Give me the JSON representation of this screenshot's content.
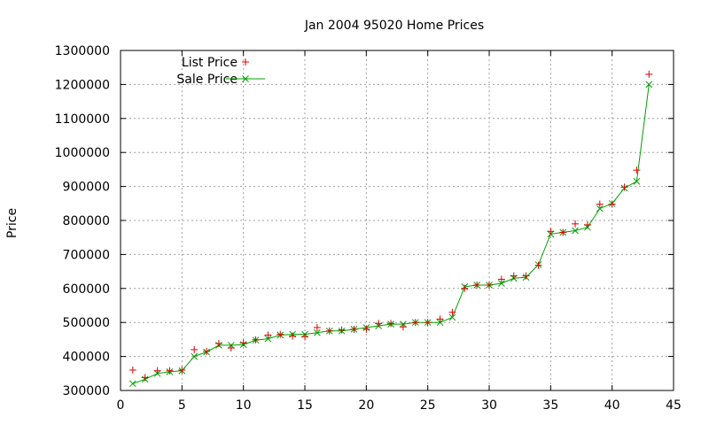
{
  "chart_data": {
    "type": "line",
    "title": "Jan 2004 95020 Home Prices",
    "xlabel": "",
    "ylabel": "Price",
    "xlim": [
      0,
      45
    ],
    "ylim": [
      300000,
      1300000
    ],
    "x_ticks": [
      0,
      5,
      10,
      15,
      20,
      25,
      30,
      35,
      40,
      45
    ],
    "y_ticks": [
      300000,
      400000,
      500000,
      600000,
      700000,
      800000,
      900000,
      1000000,
      1100000,
      1200000,
      1300000
    ],
    "grid": true,
    "legend_position": "top-left",
    "x": [
      1,
      2,
      3,
      4,
      5,
      6,
      7,
      8,
      9,
      10,
      11,
      12,
      13,
      14,
      15,
      16,
      17,
      18,
      19,
      20,
      21,
      22,
      23,
      24,
      25,
      26,
      27,
      28,
      29,
      30,
      31,
      32,
      33,
      34,
      35,
      36,
      37,
      38,
      39,
      40,
      41,
      42,
      43
    ],
    "series": [
      {
        "name": "List Price",
        "marker": "plus",
        "color": "#e00000",
        "values": [
          360000,
          338000,
          358000,
          358000,
          360000,
          420000,
          415000,
          438000,
          425000,
          440000,
          449000,
          463000,
          465000,
          460000,
          458000,
          485000,
          475000,
          478000,
          480000,
          480000,
          497000,
          497000,
          487000,
          500000,
          500000,
          510000,
          530000,
          600000,
          610000,
          610000,
          627000,
          637000,
          637000,
          668000,
          768000,
          765000,
          790000,
          787000,
          848000,
          848000,
          898000,
          948000,
          1230000
        ]
      },
      {
        "name": "Sale Price",
        "marker": "x",
        "color": "#00a000",
        "values": [
          320000,
          333000,
          350000,
          355000,
          358000,
          400000,
          413000,
          433000,
          433000,
          435000,
          448000,
          452000,
          463000,
          465000,
          465000,
          470000,
          475000,
          475000,
          480000,
          485000,
          490000,
          495000,
          495000,
          500000,
          500000,
          500000,
          515000,
          605000,
          610000,
          610000,
          615000,
          630000,
          633000,
          670000,
          760000,
          765000,
          770000,
          780000,
          835000,
          850000,
          895000,
          915000,
          1200000
        ]
      }
    ]
  }
}
